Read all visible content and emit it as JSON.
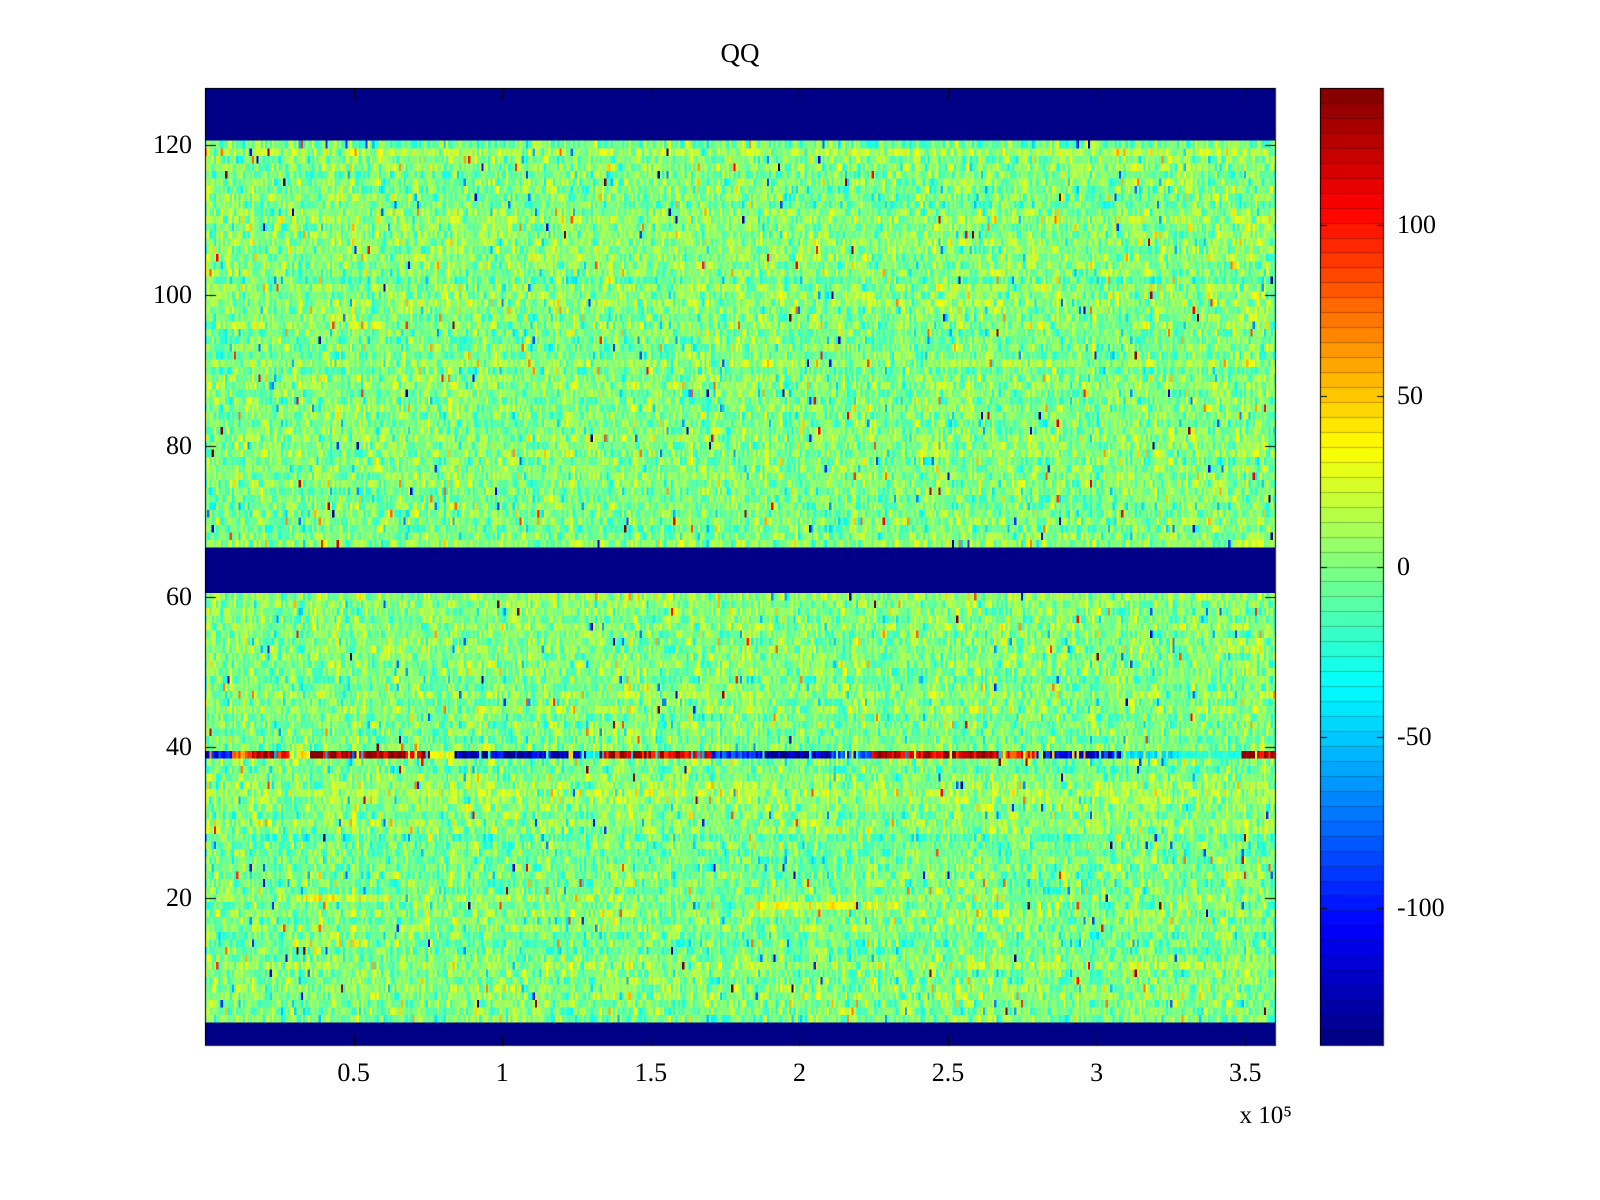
{
  "title": "QQ",
  "chart_data": {
    "type": "heatmap",
    "title": "QQ",
    "x_range": [
      0,
      360000
    ],
    "y_range": [
      0.5,
      127.5
    ],
    "x_ticks": [
      50000,
      100000,
      150000,
      200000,
      250000,
      300000,
      350000
    ],
    "x_tick_labels": [
      "0.5",
      "1",
      "1.5",
      "2",
      "2.5",
      "3",
      "3.5"
    ],
    "x_scale_label": "x 10⁵",
    "y_ticks": [
      20,
      40,
      60,
      80,
      100,
      120
    ],
    "y_tick_labels": [
      "20",
      "40",
      "60",
      "80",
      "100",
      "120"
    ],
    "color_limits": [
      -140,
      140
    ],
    "colormap": "jet",
    "colorbar_ticks": [
      -100,
      -50,
      0,
      50,
      100
    ],
    "colorbar_tick_labels": [
      "-100",
      "-50",
      "0",
      "50",
      "100"
    ],
    "colorbar_segments": 64,
    "grid": {
      "nx": 480,
      "ny": 127
    },
    "noise": {
      "mean": 0,
      "std": 16,
      "outlier_prob": 0.03,
      "outlier_std": 55,
      "extreme_prob": 0.004,
      "extreme_std": 120,
      "seed": 1337
    },
    "bands": [
      {
        "label": "top-blue-band",
        "y0": 120.5,
        "y1": 127.5,
        "value": -140
      },
      {
        "label": "middle-blue-band",
        "y0": 60.5,
        "y1": 66.5,
        "value": -140
      },
      {
        "label": "bottom-blue-band",
        "y0": 0.5,
        "y1": 3.5,
        "value": -140
      }
    ],
    "anomaly_row": {
      "y": 39,
      "segments": [
        {
          "x0": 0,
          "x1": 9000,
          "value": -115
        },
        {
          "x0": 9000,
          "x1": 16000,
          "value": 75
        },
        {
          "x0": 16000,
          "x1": 29000,
          "value": 115
        },
        {
          "x0": 29000,
          "x1": 35000,
          "value": 45
        },
        {
          "x0": 35000,
          "x1": 76000,
          "value": 138
        },
        {
          "x0": 76000,
          "x1": 84000,
          "value": 35
        },
        {
          "x0": 84000,
          "x1": 128000,
          "value": -128
        },
        {
          "x0": 128000,
          "x1": 133000,
          "value": -35
        },
        {
          "x0": 133000,
          "x1": 170000,
          "value": 122
        },
        {
          "x0": 170000,
          "x1": 187000,
          "value": -95
        },
        {
          "x0": 187000,
          "x1": 210000,
          "value": -138
        },
        {
          "x0": 210000,
          "x1": 224000,
          "value": -85
        },
        {
          "x0": 224000,
          "x1": 268000,
          "value": 128
        },
        {
          "x0": 268000,
          "x1": 280000,
          "value": 95
        },
        {
          "x0": 280000,
          "x1": 308000,
          "value": -115
        },
        {
          "x0": 308000,
          "x1": 328000,
          "value": -45
        },
        {
          "x0": 328000,
          "x1": 349000,
          "value": -25
        },
        {
          "x0": 349000,
          "x1": 360000,
          "value": 132
        }
      ]
    },
    "faint_streaks": [
      {
        "y": 19,
        "x0": 185000,
        "x1": 235000,
        "amp": 26
      },
      {
        "y": 20,
        "x0": 30000,
        "x1": 62000,
        "amp": 18
      },
      {
        "y": 14,
        "x0": 28000,
        "x1": 58000,
        "amp": 16
      }
    ],
    "background_color": "#ffffff"
  }
}
